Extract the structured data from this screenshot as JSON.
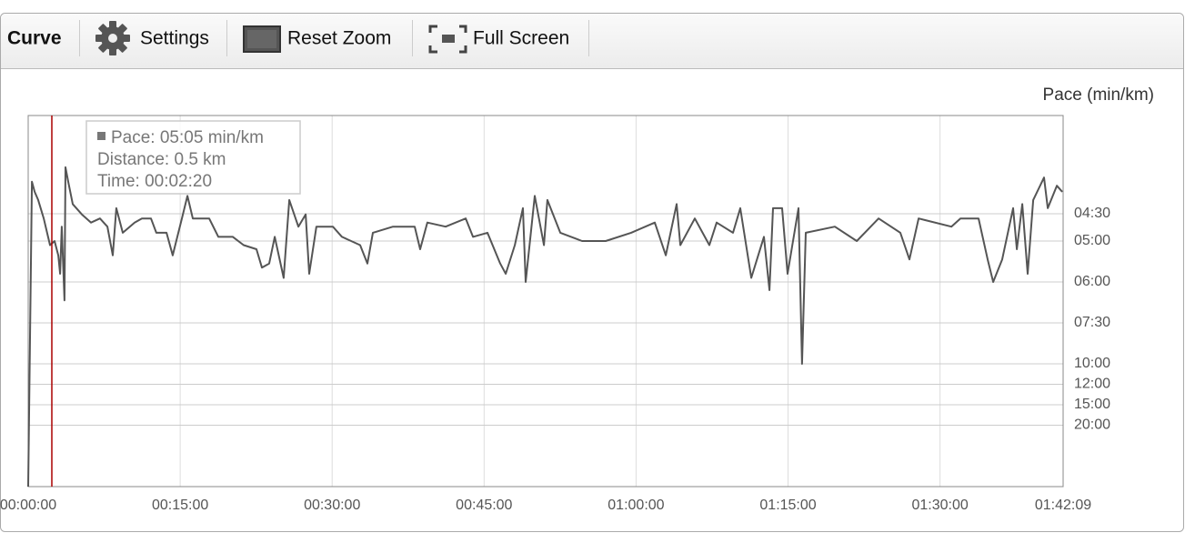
{
  "toolbar": {
    "items": [
      "Curve",
      "Settings",
      "Reset Zoom",
      "Full Screen"
    ]
  },
  "chart_data": {
    "type": "line",
    "y_label": "Pace (min/km)",
    "xlim": [
      0,
      6129
    ],
    "xticks": [
      {
        "value": 0,
        "label": "00:00:00"
      },
      {
        "value": 900,
        "label": "00:15:00"
      },
      {
        "value": 1800,
        "label": "00:30:00"
      },
      {
        "value": 2700,
        "label": "00:45:00"
      },
      {
        "value": 3600,
        "label": "01:00:00"
      },
      {
        "value": 4500,
        "label": "01:15:00"
      },
      {
        "value": 5400,
        "label": "01:30:00"
      },
      {
        "value": 6129,
        "label": "01:42:09"
      }
    ],
    "ylim": [
      0,
      18.13
    ],
    "yticks": [
      {
        "value": 13.33,
        "label": "04:30"
      },
      {
        "value": 12,
        "label": "05:00"
      },
      {
        "value": 10,
        "label": "06:00"
      },
      {
        "value": 8,
        "label": "07:30"
      },
      {
        "value": 6,
        "label": "10:00"
      },
      {
        "value": 5,
        "label": "12:00"
      },
      {
        "value": 4,
        "label": "15:00"
      },
      {
        "value": 3,
        "label": "20:00"
      }
    ],
    "grid": true,
    "x": [
      0,
      22,
      38,
      59,
      92,
      129,
      156,
      178,
      189,
      199,
      215,
      221,
      237,
      264,
      318,
      372,
      425,
      469,
      501,
      522,
      560,
      630,
      673,
      727,
      759,
      819,
      856,
      910,
      943,
      975,
      1072,
      1126,
      1212,
      1276,
      1352,
      1384,
      1427,
      1460,
      1513,
      1546,
      1600,
      1643,
      1664,
      1707,
      1804,
      1858,
      1966,
      2009,
      2041,
      2160,
      2289,
      2321,
      2364,
      2472,
      2591,
      2634,
      2720,
      2795,
      2828,
      2882,
      2930,
      2946,
      3000,
      3054,
      3075,
      3151,
      3280,
      3420,
      3571,
      3711,
      3776,
      3840,
      3862,
      3948,
      4034,
      4077,
      4174,
      4217,
      4282,
      4357,
      4390,
      4411,
      4465,
      4497,
      4562,
      4583,
      4605,
      4777,
      4907,
      5036,
      5165,
      5219,
      5273,
      5467,
      5521,
      5628,
      5682,
      5715,
      5768,
      5833,
      5855,
      5887,
      5919,
      5952,
      6016,
      6038,
      6092,
      6124
    ],
    "series": [
      {
        "color": "#555555",
        "values": [
          0,
          14.9,
          14.4,
          14.0,
          13.1,
          11.8,
          12.0,
          11.3,
          10.4,
          12.7,
          9.1,
          15.6,
          14.9,
          13.8,
          13.3,
          12.9,
          13.1,
          12.7,
          11.3,
          13.6,
          12.4,
          12.9,
          13.1,
          13.1,
          12.4,
          12.4,
          11.3,
          13.1,
          14.2,
          13.1,
          13.1,
          12.2,
          12.2,
          11.8,
          11.6,
          10.7,
          10.9,
          12.2,
          10.2,
          14.0,
          12.7,
          13.3,
          10.4,
          12.7,
          12.7,
          12.2,
          11.8,
          10.9,
          12.4,
          12.7,
          12.7,
          11.6,
          12.9,
          12.7,
          13.1,
          12.2,
          12.4,
          10.9,
          10.4,
          11.8,
          13.6,
          10.0,
          14.2,
          11.8,
          14.0,
          12.4,
          12.0,
          12.0,
          12.4,
          12.9,
          11.3,
          13.8,
          11.8,
          13.1,
          11.8,
          12.9,
          12.4,
          13.6,
          10.2,
          12.2,
          9.6,
          13.6,
          13.6,
          10.4,
          13.6,
          6.0,
          12.4,
          12.7,
          12.0,
          13.1,
          12.4,
          11.1,
          13.1,
          12.7,
          13.1,
          13.1,
          11.1,
          10.0,
          11.1,
          13.6,
          11.6,
          13.8,
          10.4,
          14.0,
          15.1,
          13.6,
          14.7,
          14.4
        ]
      }
    ],
    "cursor": {
      "x": 140,
      "lines": [
        "Pace: 05:05 min/km",
        "Distance: 0.5 km",
        "Time: 00:02:20"
      ]
    }
  }
}
